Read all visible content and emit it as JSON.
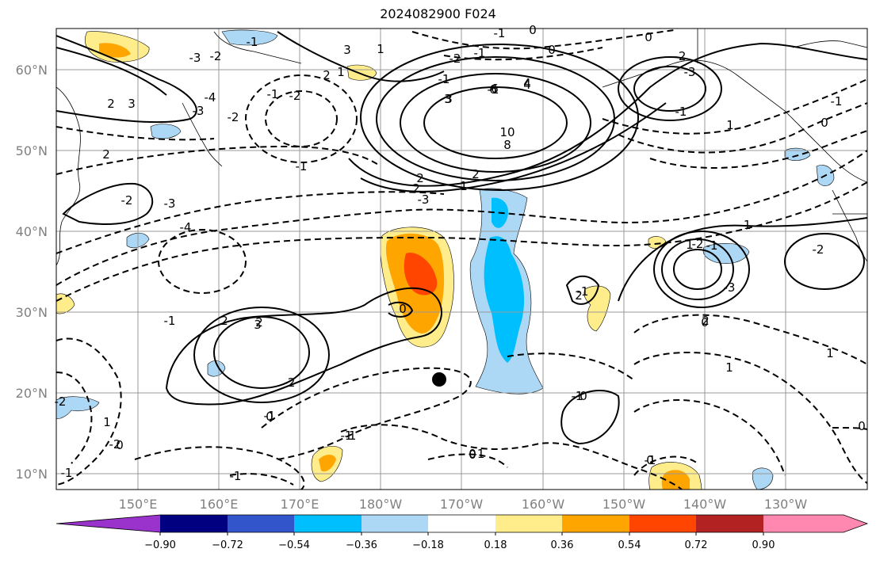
{
  "title": "2024082900 F024",
  "lat_labels": [
    "60°N",
    "50°N",
    "40°N",
    "30°N",
    "20°N",
    "10°N"
  ],
  "lon_labels": [
    "150°E",
    "160°E",
    "170°E",
    "180°W",
    "170°W",
    "160°W",
    "150°W",
    "140°W",
    "130°W"
  ],
  "colorbar": {
    "colors": [
      "#9933cc",
      "#000080",
      "#3355cc",
      "#00bfff",
      "#add8f5",
      "#ffffff",
      "#ffec8b",
      "#ffa500",
      "#ff4500",
      "#b22222",
      "#ff88b0"
    ],
    "labels": [
      "−0.90",
      "−0.72",
      "−0.54",
      "−0.36",
      "−0.18",
      "0.18",
      "0.36",
      "0.54",
      "0.72",
      "0.90"
    ]
  },
  "contour_labels": [
    "6",
    "4",
    "3",
    "2",
    "2",
    "3",
    "2",
    "1",
    "1",
    "-1",
    "-2",
    "-3",
    "-1",
    "0",
    "0",
    "-1",
    "0",
    "-1",
    "-2",
    "-1",
    "-2",
    "-3",
    "-4",
    "-3",
    "-2",
    "-1",
    "-2",
    "-1",
    "-3",
    "-4",
    "-3",
    "-2",
    "2",
    "2",
    "3",
    "10",
    "8",
    "6",
    "4",
    "3",
    "2",
    "1",
    "0",
    "2",
    "3",
    "2",
    "-2",
    "-1",
    "-3",
    "-2",
    "-1",
    "-1",
    "0",
    "1",
    "2",
    "1",
    "1",
    "0",
    "1",
    "2",
    "-1",
    "-2",
    "0",
    "-1",
    "0",
    "-1",
    "-1",
    "0",
    "-1",
    "-1",
    "0",
    "-2",
    "1",
    "-1",
    "-2",
    "-1",
    "0",
    "-1",
    "-1",
    "0",
    "0",
    "-1"
  ],
  "marker": {
    "label": "storm-center"
  }
}
